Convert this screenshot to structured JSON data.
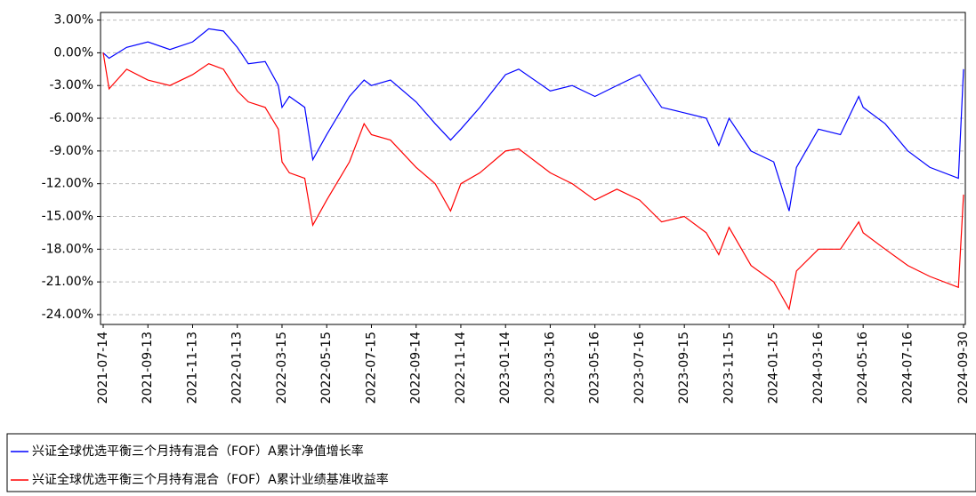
{
  "chart_data": {
    "type": "line",
    "x": [
      "2021-07-14",
      "2021-07-22",
      "2021-08-15",
      "2021-09-13",
      "2021-10-13",
      "2021-11-13",
      "2021-12-05",
      "2021-12-25",
      "2022-01-13",
      "2022-01-28",
      "2022-02-20",
      "2022-03-10",
      "2022-03-15",
      "2022-03-25",
      "2022-04-15",
      "2022-04-26",
      "2022-05-15",
      "2022-06-15",
      "2022-07-05",
      "2022-07-15",
      "2022-08-10",
      "2022-09-14",
      "2022-10-10",
      "2022-10-31",
      "2022-11-14",
      "2022-12-10",
      "2023-01-14",
      "2023-02-01",
      "2023-03-16",
      "2023-04-15",
      "2023-05-16",
      "2023-06-15",
      "2023-07-16",
      "2023-08-15",
      "2023-09-15",
      "2023-10-15",
      "2023-11-01",
      "2023-11-15",
      "2023-12-15",
      "2024-01-15",
      "2024-02-05",
      "2024-02-15",
      "2024-03-16",
      "2024-04-15",
      "2024-05-10",
      "2024-05-16",
      "2024-06-15",
      "2024-07-16",
      "2024-08-15",
      "2024-09-23",
      "2024-09-30"
    ],
    "series": [
      {
        "name": "兴证全球优选平衡三个月持有混合（FOF）A累计净值增长率",
        "color": "#0000ff",
        "values": [
          0,
          -0.5,
          0.5,
          1.0,
          0.3,
          1.0,
          2.2,
          2.0,
          0.5,
          -1.0,
          -0.8,
          -3.0,
          -5.0,
          -4.0,
          -5.0,
          -9.8,
          -7.5,
          -4.0,
          -2.5,
          -3.0,
          -2.5,
          -4.5,
          -6.5,
          -8.0,
          -7.0,
          -5.0,
          -2.0,
          -1.5,
          -3.5,
          -3.0,
          -4.0,
          -3.0,
          -2.0,
          -5.0,
          -5.5,
          -6.0,
          -8.5,
          -6.0,
          -9.0,
          -10.0,
          -14.5,
          -10.5,
          -7.0,
          -7.5,
          -4.0,
          -5.0,
          -6.5,
          -9.0,
          -10.5,
          -11.5,
          -1.5
        ]
      },
      {
        "name": "兴证全球优选平衡三个月持有混合（FOF）A累计业绩基准收益率",
        "color": "#ff0000",
        "values": [
          0,
          -3.3,
          -1.5,
          -2.5,
          -3.0,
          -2.0,
          -1.0,
          -1.5,
          -3.5,
          -4.5,
          -5.0,
          -7.0,
          -10.0,
          -11.0,
          -11.5,
          -15.8,
          -13.5,
          -10.0,
          -6.5,
          -7.5,
          -8.0,
          -10.5,
          -12.0,
          -14.5,
          -12.0,
          -11.0,
          -9.0,
          -8.8,
          -11.0,
          -12.0,
          -13.5,
          -12.5,
          -13.5,
          -15.5,
          -15.0,
          -16.5,
          -18.5,
          -16.0,
          -19.5,
          -21.0,
          -23.5,
          -20.0,
          -18.0,
          -18.0,
          -15.5,
          -16.5,
          -18.0,
          -19.5,
          -20.5,
          -21.5,
          -13.0
        ]
      }
    ],
    "xlim": [
      "2021-07-14",
      "2024-09-30"
    ],
    "xticks": [
      "2021-07-14",
      "2021-09-13",
      "2021-11-13",
      "2022-01-13",
      "2022-03-15",
      "2022-05-15",
      "2022-07-15",
      "2022-09-14",
      "2022-11-14",
      "2023-01-14",
      "2023-03-16",
      "2023-05-16",
      "2023-07-16",
      "2023-09-15",
      "2023-11-15",
      "2024-01-15",
      "2024-03-16",
      "2024-05-16",
      "2024-07-16",
      "2024-09-30"
    ],
    "ylim": [
      -24.9,
      3.7
    ],
    "yticks": [
      {
        "value": 3,
        "label": "3.00%"
      },
      {
        "value": 0,
        "label": "0.00%"
      },
      {
        "value": -3,
        "label": "-3.00%"
      },
      {
        "value": -6,
        "label": "-6.00%"
      },
      {
        "value": -9,
        "label": "-9.00%"
      },
      {
        "value": -12,
        "label": "-12.00%"
      },
      {
        "value": -15,
        "label": "-15.00%"
      },
      {
        "value": -18,
        "label": "-18.00%"
      },
      {
        "value": -21,
        "label": "-21.00%"
      },
      {
        "value": -24,
        "label": "-24.00%"
      }
    ],
    "grid": true
  }
}
